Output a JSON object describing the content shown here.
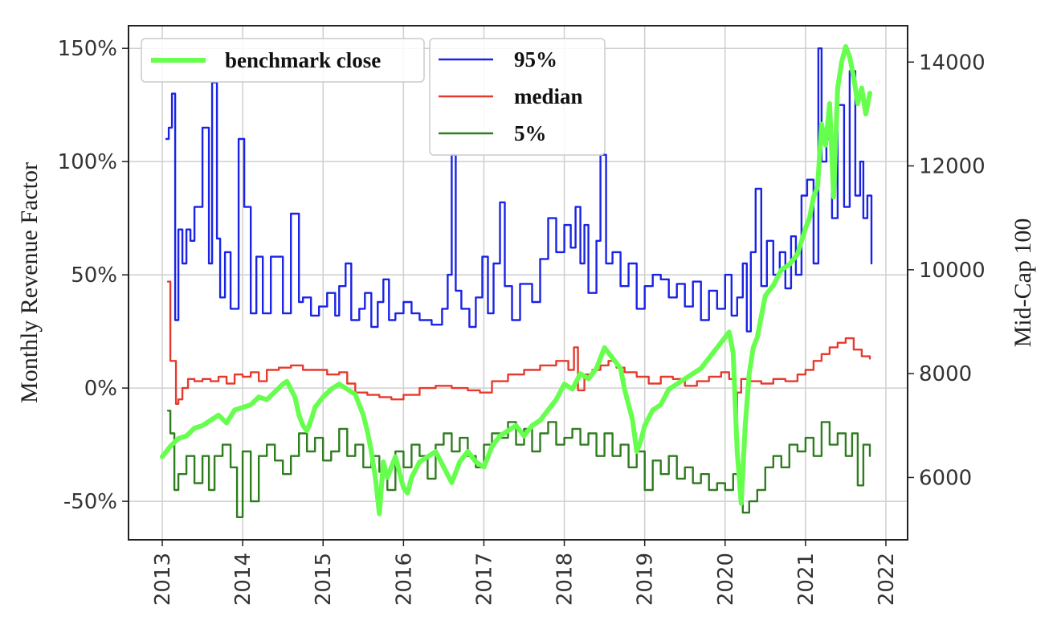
{
  "chart_data": {
    "type": "line",
    "title": "",
    "xlabel": "",
    "ylabel_left": "Monthly Revenue Factor",
    "ylabel_right": "Mid-Cap 100",
    "x_ticks": [
      "2013",
      "2014",
      "2015",
      "2016",
      "2017",
      "2018",
      "2019",
      "2020",
      "2021",
      "2022"
    ],
    "y_left_ticks": [
      "-50%",
      "0%",
      "50%",
      "100%",
      "150%"
    ],
    "y_right_ticks": [
      "6000",
      "8000",
      "10000",
      "12000",
      "14000"
    ],
    "y_left_range": [
      -0.67,
      1.6
    ],
    "y_right_range": [
      4800,
      14700
    ],
    "grid": true,
    "legends": [
      {
        "position": "top-left",
        "entries": [
          {
            "name": "benchmark close",
            "color": "#66ff4d"
          }
        ]
      },
      {
        "position": "top-center",
        "entries": [
          {
            "name": "95%",
            "color": "#1a23e6"
          },
          {
            "name": "median",
            "color": "#e63a2e"
          },
          {
            "name": "5%",
            "color": "#2e7d1f"
          }
        ]
      }
    ],
    "series": [
      {
        "name": "95%",
        "axis": "left",
        "color": "#1a23e6",
        "x": [
          2013.05,
          2013.08,
          2013.12,
          2013.16,
          2013.2,
          2013.25,
          2013.3,
          2013.35,
          2013.4,
          2013.5,
          2013.58,
          2013.62,
          2013.68,
          2013.72,
          2013.78,
          2013.85,
          2013.95,
          2014.02,
          2014.1,
          2014.17,
          2014.25,
          2014.35,
          2014.5,
          2014.6,
          2014.7,
          2014.75,
          2014.85,
          2014.95,
          2015.05,
          2015.15,
          2015.2,
          2015.28,
          2015.35,
          2015.45,
          2015.52,
          2015.6,
          2015.68,
          2015.75,
          2015.82,
          2015.9,
          2016.0,
          2016.1,
          2016.2,
          2016.35,
          2016.48,
          2016.55,
          2016.6,
          2016.65,
          2016.72,
          2016.82,
          2016.9,
          2016.98,
          2017.05,
          2017.12,
          2017.2,
          2017.26,
          2017.35,
          2017.45,
          2017.6,
          2017.7,
          2017.8,
          2017.9,
          2018.0,
          2018.08,
          2018.14,
          2018.2,
          2018.25,
          2018.3,
          2018.4,
          2018.45,
          2018.52,
          2018.6,
          2018.7,
          2018.8,
          2018.9,
          2019.0,
          2019.1,
          2019.2,
          2019.3,
          2019.4,
          2019.5,
          2019.6,
          2019.7,
          2019.8,
          2019.9,
          2020.0,
          2020.08,
          2020.15,
          2020.22,
          2020.27,
          2020.32,
          2020.38,
          2020.45,
          2020.52,
          2020.6,
          2020.68,
          2020.75,
          2020.82,
          2020.88,
          2020.95,
          2021.02,
          2021.1,
          2021.16,
          2021.2,
          2021.26,
          2021.33,
          2021.4,
          2021.48,
          2021.55,
          2021.62,
          2021.68,
          2021.72,
          2021.77,
          2021.82
        ],
        "y": [
          1.1,
          1.15,
          1.3,
          0.3,
          0.7,
          0.55,
          0.7,
          0.65,
          0.8,
          1.15,
          0.55,
          1.35,
          0.66,
          0.4,
          0.6,
          0.35,
          1.1,
          0.8,
          0.33,
          0.58,
          0.33,
          0.58,
          0.33,
          0.77,
          0.38,
          0.4,
          0.32,
          0.36,
          0.42,
          0.32,
          0.45,
          0.55,
          0.3,
          0.35,
          0.42,
          0.27,
          0.38,
          0.48,
          0.3,
          0.33,
          0.38,
          0.33,
          0.3,
          0.28,
          0.35,
          0.5,
          1.03,
          0.43,
          0.35,
          0.27,
          0.4,
          0.58,
          0.33,
          0.55,
          0.82,
          0.45,
          0.3,
          0.46,
          0.38,
          0.57,
          0.75,
          0.6,
          0.72,
          0.62,
          0.8,
          0.55,
          0.72,
          0.42,
          0.65,
          1.03,
          0.55,
          0.6,
          0.45,
          0.55,
          0.35,
          0.45,
          0.5,
          0.48,
          0.4,
          0.46,
          0.36,
          0.47,
          0.3,
          0.43,
          0.35,
          0.5,
          0.32,
          0.4,
          0.55,
          0.25,
          0.6,
          0.88,
          0.45,
          0.65,
          0.5,
          0.6,
          0.44,
          0.67,
          0.5,
          0.85,
          0.92,
          0.55,
          1.5,
          1.0,
          1.1,
          0.75,
          1.25,
          0.8,
          1.4,
          0.85,
          1.0,
          0.75,
          0.85,
          0.55
        ],
        "width": 2.4
      },
      {
        "name": "median",
        "axis": "left",
        "color": "#e63a2e",
        "x": [
          2013.07,
          2013.1,
          2013.13,
          2013.17,
          2013.2,
          2013.25,
          2013.32,
          2013.4,
          2013.5,
          2013.6,
          2013.7,
          2013.8,
          2013.9,
          2014.0,
          2014.1,
          2014.2,
          2014.3,
          2014.45,
          2014.6,
          2014.75,
          2014.9,
          2015.05,
          2015.2,
          2015.3,
          2015.4,
          2015.55,
          2015.7,
          2015.85,
          2016.0,
          2016.2,
          2016.4,
          2016.6,
          2016.8,
          2016.95,
          2017.1,
          2017.3,
          2017.5,
          2017.7,
          2017.9,
          2018.05,
          2018.12,
          2018.17,
          2018.25,
          2018.35,
          2018.45,
          2018.55,
          2018.65,
          2018.75,
          2018.9,
          2019.05,
          2019.2,
          2019.35,
          2019.5,
          2019.65,
          2019.8,
          2019.95,
          2020.05,
          2020.12,
          2020.15,
          2020.2,
          2020.3,
          2020.45,
          2020.6,
          2020.75,
          2020.9,
          2021.0,
          2021.1,
          2021.2,
          2021.3,
          2021.4,
          2021.5,
          2021.6,
          2021.7,
          2021.8
        ],
        "y": [
          0.47,
          0.12,
          0.12,
          -0.07,
          -0.05,
          0.0,
          0.04,
          0.03,
          0.04,
          0.03,
          0.05,
          0.02,
          0.06,
          0.05,
          0.07,
          0.03,
          0.08,
          0.09,
          0.1,
          0.08,
          0.08,
          0.06,
          0.07,
          0.02,
          -0.02,
          -0.03,
          -0.04,
          -0.05,
          -0.03,
          0.0,
          0.01,
          0.0,
          -0.01,
          -0.02,
          0.03,
          0.06,
          0.08,
          0.1,
          0.12,
          0.08,
          0.18,
          -0.01,
          0.06,
          0.08,
          0.1,
          0.12,
          0.09,
          0.07,
          0.05,
          0.02,
          0.05,
          0.04,
          0.01,
          0.03,
          0.05,
          0.07,
          0.04,
          -0.12,
          -0.02,
          0.04,
          0.03,
          0.02,
          0.04,
          0.03,
          0.06,
          0.08,
          0.12,
          0.15,
          0.18,
          0.2,
          0.22,
          0.17,
          0.14,
          0.13
        ],
        "width": 2.4
      },
      {
        "name": "5%",
        "axis": "left",
        "color": "#2e7d1f",
        "x": [
          2013.07,
          2013.1,
          2013.15,
          2013.2,
          2013.3,
          2013.4,
          2013.5,
          2013.58,
          2013.65,
          2013.75,
          2013.85,
          2013.93,
          2014.0,
          2014.1,
          2014.2,
          2014.3,
          2014.4,
          2014.5,
          2014.6,
          2014.7,
          2014.8,
          2014.9,
          2015.0,
          2015.1,
          2015.2,
          2015.3,
          2015.4,
          2015.5,
          2015.6,
          2015.7,
          2015.8,
          2015.9,
          2016.0,
          2016.1,
          2016.2,
          2016.3,
          2016.4,
          2016.5,
          2016.6,
          2016.7,
          2016.8,
          2016.9,
          2017.0,
          2017.1,
          2017.2,
          2017.3,
          2017.4,
          2017.5,
          2017.6,
          2017.7,
          2017.8,
          2017.9,
          2018.0,
          2018.1,
          2018.2,
          2018.3,
          2018.4,
          2018.5,
          2018.6,
          2018.7,
          2018.8,
          2018.9,
          2019.0,
          2019.1,
          2019.2,
          2019.3,
          2019.4,
          2019.5,
          2019.6,
          2019.7,
          2019.8,
          2019.9,
          2020.0,
          2020.1,
          2020.17,
          2020.22,
          2020.3,
          2020.4,
          2020.5,
          2020.6,
          2020.7,
          2020.8,
          2020.9,
          2021.0,
          2021.1,
          2021.2,
          2021.3,
          2021.4,
          2021.5,
          2021.58,
          2021.65,
          2021.72,
          2021.8
        ],
        "y": [
          -0.1,
          -0.2,
          -0.45,
          -0.38,
          -0.3,
          -0.42,
          -0.3,
          -0.45,
          -0.3,
          -0.25,
          -0.35,
          -0.57,
          -0.28,
          -0.5,
          -0.3,
          -0.25,
          -0.32,
          -0.38,
          -0.3,
          -0.2,
          -0.28,
          -0.22,
          -0.32,
          -0.28,
          -0.18,
          -0.3,
          -0.25,
          -0.35,
          -0.3,
          -0.37,
          -0.45,
          -0.28,
          -0.35,
          -0.25,
          -0.3,
          -0.4,
          -0.25,
          -0.2,
          -0.28,
          -0.22,
          -0.3,
          -0.35,
          -0.25,
          -0.2,
          -0.22,
          -0.15,
          -0.25,
          -0.18,
          -0.28,
          -0.2,
          -0.15,
          -0.25,
          -0.22,
          -0.18,
          -0.25,
          -0.2,
          -0.3,
          -0.2,
          -0.3,
          -0.25,
          -0.35,
          -0.28,
          -0.45,
          -0.32,
          -0.38,
          -0.3,
          -0.4,
          -0.35,
          -0.42,
          -0.38,
          -0.45,
          -0.42,
          -0.45,
          -0.38,
          -0.4,
          -0.55,
          -0.5,
          -0.45,
          -0.35,
          -0.3,
          -0.35,
          -0.25,
          -0.28,
          -0.22,
          -0.3,
          -0.15,
          -0.25,
          -0.2,
          -0.3,
          -0.2,
          -0.43,
          -0.25,
          -0.3
        ],
        "width": 2.4
      },
      {
        "name": "benchmark close",
        "axis": "right",
        "color": "#66ff4d",
        "x": [
          2013.0,
          2013.1,
          2013.2,
          2013.3,
          2013.4,
          2013.5,
          2013.6,
          2013.7,
          2013.8,
          2013.9,
          2014.0,
          2014.1,
          2014.2,
          2014.3,
          2014.4,
          2014.5,
          2014.55,
          2014.6,
          2014.65,
          2014.7,
          2014.75,
          2014.8,
          2014.85,
          2014.9,
          2015.0,
          2015.1,
          2015.2,
          2015.3,
          2015.4,
          2015.45,
          2015.5,
          2015.55,
          2015.6,
          2015.65,
          2015.7,
          2015.75,
          2015.8,
          2015.85,
          2015.9,
          2016.0,
          2016.05,
          2016.1,
          2016.2,
          2016.3,
          2016.4,
          2016.5,
          2016.6,
          2016.7,
          2016.8,
          2016.9,
          2017.0,
          2017.1,
          2017.2,
          2017.3,
          2017.4,
          2017.5,
          2017.6,
          2017.7,
          2017.8,
          2017.9,
          2018.0,
          2018.1,
          2018.2,
          2018.3,
          2018.4,
          2018.45,
          2018.5,
          2018.55,
          2018.6,
          2018.7,
          2018.75,
          2018.8,
          2018.85,
          2018.9,
          2018.95,
          2019.0,
          2019.1,
          2019.2,
          2019.3,
          2019.4,
          2019.5,
          2019.6,
          2019.7,
          2019.8,
          2019.9,
          2020.0,
          2020.05,
          2020.1,
          2020.15,
          2020.2,
          2020.25,
          2020.3,
          2020.35,
          2020.4,
          2020.45,
          2020.5,
          2020.6,
          2020.7,
          2020.8,
          2020.9,
          2021.0,
          2021.05,
          2021.1,
          2021.15,
          2021.2,
          2021.25,
          2021.3,
          2021.35,
          2021.4,
          2021.45,
          2021.5,
          2021.55,
          2021.6,
          2021.65,
          2021.7,
          2021.75,
          2021.8
        ],
        "y": [
          6400,
          6600,
          6750,
          6800,
          6950,
          7000,
          7100,
          7200,
          7050,
          7300,
          7350,
          7400,
          7550,
          7500,
          7650,
          7800,
          7850,
          7700,
          7550,
          7200,
          7000,
          6900,
          7100,
          7350,
          7550,
          7700,
          7800,
          7700,
          7600,
          7400,
          7200,
          6900,
          6500,
          6000,
          5300,
          6300,
          6000,
          6200,
          6400,
          5800,
          5700,
          6000,
          6300,
          6400,
          6500,
          6200,
          5900,
          6300,
          6500,
          6300,
          6200,
          6600,
          6800,
          6900,
          7000,
          6800,
          7000,
          7100,
          7300,
          7500,
          7800,
          7700,
          8000,
          7900,
          8100,
          8300,
          8500,
          8400,
          8300,
          8100,
          7700,
          7400,
          7100,
          6500,
          6700,
          7000,
          7300,
          7400,
          7700,
          7800,
          7900,
          8000,
          8100,
          8300,
          8500,
          8700,
          8800,
          8400,
          6500,
          5500,
          7000,
          8000,
          8500,
          8700,
          9100,
          9500,
          9700,
          10000,
          10100,
          10300,
          10800,
          11000,
          11400,
          11600,
          12800,
          12400,
          13200,
          11400,
          13500,
          14000,
          14300,
          14100,
          13700,
          13200,
          13500,
          13000,
          13400
        ],
        "width": 6
      }
    ]
  }
}
